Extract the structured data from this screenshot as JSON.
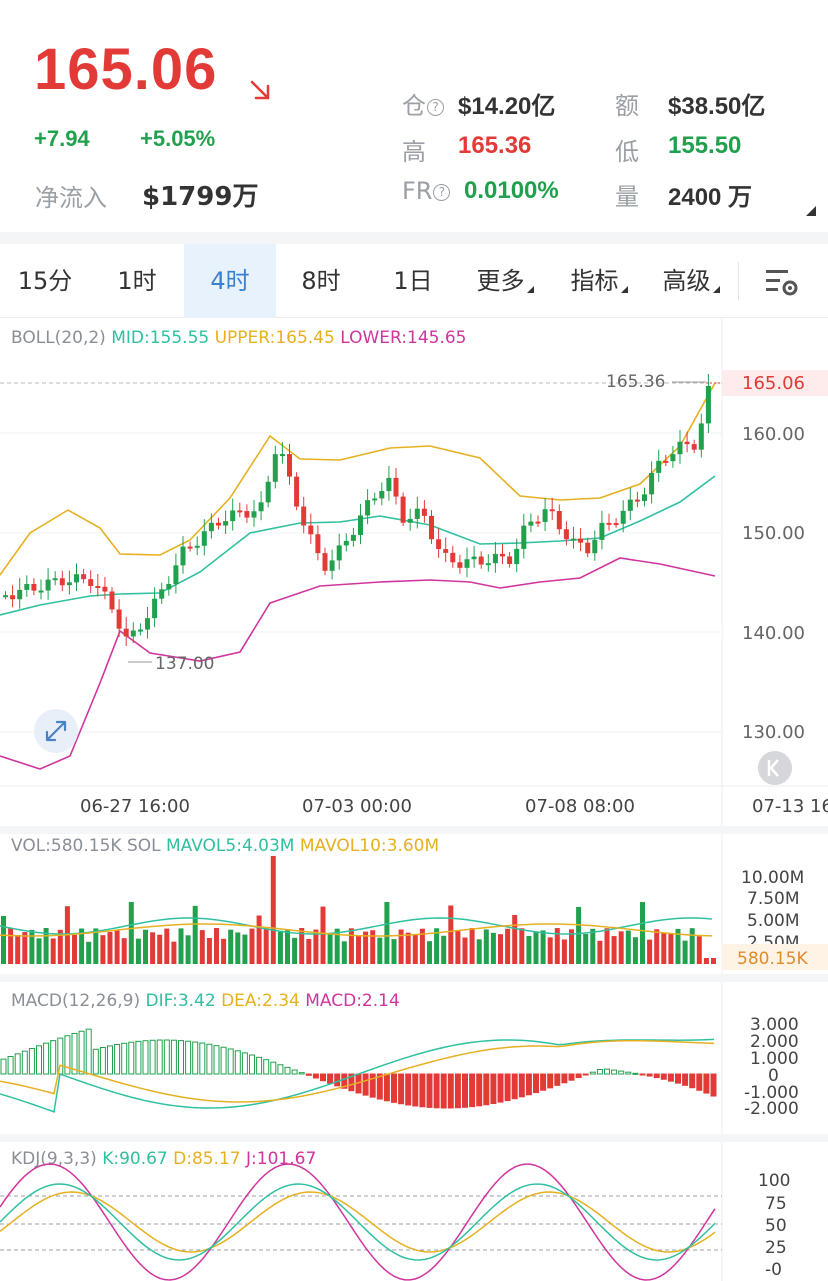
{
  "ticker": {
    "price": "165.06",
    "change": "+7.94",
    "change_pct": "+5.05%",
    "net_inflow_label": "净流入",
    "net_inflow_value": "$1799万",
    "stats": {
      "oi_label": "仓",
      "oi_value": "$14.20亿",
      "turnover_label": "额",
      "turnover_value": "$38.50亿",
      "high_label": "高",
      "high_value": "165.36",
      "low_label": "低",
      "low_value": "155.50",
      "fr_label": "FR",
      "fr_value": "0.0100%",
      "vol_label": "量",
      "vol_value": "2400 万"
    },
    "help_glyph": "?"
  },
  "colors": {
    "up": "#21a04d",
    "down": "#e23b37",
    "mid": "#2fc0a0",
    "upper": "#e6b020",
    "lower": "#d0359e",
    "active_tab": "#3b7fd0"
  },
  "tabs": [
    {
      "label": "15分"
    },
    {
      "label": "1时"
    },
    {
      "label": "4时",
      "active": true
    },
    {
      "label": "8时"
    },
    {
      "label": "1日"
    },
    {
      "label": "更多"
    },
    {
      "label": "指标"
    },
    {
      "label": "高级"
    }
  ],
  "icons": {
    "settings": "chart-settings-icon",
    "fullscreen": "expand-arrows-icon",
    "back": "skip-back-icon",
    "trend": "trend-down-arrow-icon"
  },
  "main_chart": {
    "legend": {
      "name": "BOLL(20,2)",
      "mid": "MID:155.55",
      "upper": "UPPER:165.45",
      "lower": "LOWER:145.65"
    },
    "y_ticks": [
      "160.00",
      "150.00",
      "140.00",
      "130.00"
    ],
    "x_ticks": [
      "06-27 16:00",
      "07-03 00:00",
      "07-08 08:00",
      "07-13 16"
    ],
    "high_marker": "165.36",
    "low_marker": "137.00",
    "last_price_tag": "165.06"
  },
  "vol_chart": {
    "legend": {
      "name": "VOL:580.15K",
      "sol": "SOL",
      "mavol5": "MAVOL5:4.03M",
      "mavol10": "MAVOL10:3.60M"
    },
    "y_ticks": [
      "10.00M",
      "7.50M",
      "5.00M",
      "2.50M"
    ],
    "last_tag": "580.15K"
  },
  "macd_chart": {
    "legend": {
      "name": "MACD(12,26,9)",
      "dif": "DIF:3.42",
      "dea": "DEA:2.34",
      "macd": "MACD:2.14"
    },
    "y_ticks": [
      "3.000",
      "2.000",
      "1.000",
      "0",
      "-1.000",
      "-2.000"
    ]
  },
  "kdj_chart": {
    "legend": {
      "name": "KDJ(9,3,3)",
      "k": "K:90.67",
      "d": "D:85.17",
      "j": "J:101.67"
    },
    "y_ticks": [
      "100",
      "75",
      "50",
      "25",
      "-0"
    ]
  }
}
